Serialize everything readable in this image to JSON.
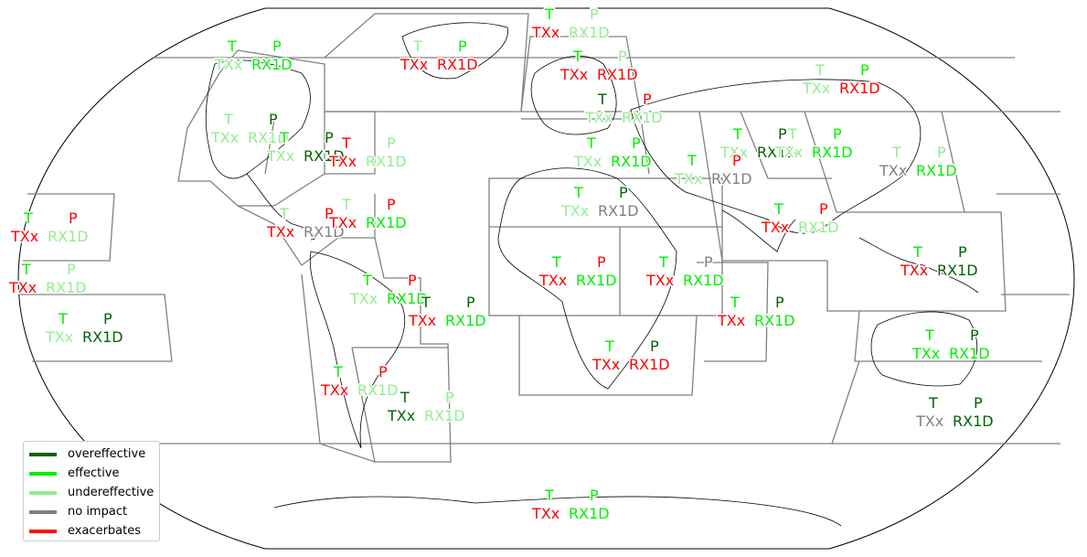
{
  "colors": {
    "overeffective": "#006400",
    "effective": "#00ee00",
    "undereffective": "#90ee90",
    "no_impact": "#808080",
    "exacerbates": "#ff0000"
  },
  "legend": [
    {
      "label": "overeffective",
      "color": "#006400"
    },
    {
      "label": "effective",
      "color": "#00ee00"
    },
    {
      "label": "undereffective",
      "color": "#90ee90"
    },
    {
      "label": "no impact",
      "color": "#808080"
    },
    {
      "label": "exacerbates",
      "color": "#ff0000"
    }
  ],
  "regions": [
    {
      "id": "alaska",
      "T": {
        "text": "T",
        "color": "#00ee00"
      },
      "P": {
        "text": "P",
        "color": "#00ee00"
      },
      "TXx": {
        "text": "TXx",
        "color": "#90ee90"
      },
      "RX1D": {
        "text": "RX1D",
        "color": "#00ee00"
      }
    },
    {
      "id": "greenland",
      "T": {
        "text": "T",
        "color": "#90ee90"
      },
      "P": {
        "text": "P",
        "color": "#00ee00"
      },
      "TXx": {
        "text": "TXx",
        "color": "#ff0000"
      },
      "RX1D": {
        "text": "RX1D",
        "color": "#ff0000"
      }
    },
    {
      "id": "arctic-europe",
      "T": {
        "text": "T",
        "color": "#00ee00"
      },
      "P": {
        "text": "P",
        "color": "#90ee90"
      },
      "TXx": {
        "text": "TXx",
        "color": "#ff0000"
      },
      "RX1D": {
        "text": "RX1D",
        "color": "#90ee90"
      }
    },
    {
      "id": "north-europe",
      "T": {
        "text": "T",
        "color": "#00ee00"
      },
      "P": {
        "text": "P",
        "color": "#90ee90"
      },
      "TXx": {
        "text": "TXx",
        "color": "#ff0000"
      },
      "RX1D": {
        "text": "RX1D",
        "color": "#ff0000"
      }
    },
    {
      "id": "russian-far-east",
      "T": {
        "text": "T",
        "color": "#90ee90"
      },
      "P": {
        "text": "P",
        "color": "#00ee00"
      },
      "TXx": {
        "text": "TXx",
        "color": "#90ee90"
      },
      "RX1D": {
        "text": "RX1D",
        "color": "#ff0000"
      }
    },
    {
      "id": "west-north-america",
      "T": {
        "text": "T",
        "color": "#90ee90"
      },
      "P": {
        "text": "P",
        "color": "#006400"
      },
      "TXx": {
        "text": "TXx",
        "color": "#90ee90"
      },
      "RX1D": {
        "text": "RX1D",
        "color": "#90ee90"
      }
    },
    {
      "id": "central-north-america",
      "T": {
        "text": "T",
        "color": "#00ee00"
      },
      "P": {
        "text": "P",
        "color": "#006400"
      },
      "TXx": {
        "text": "TXx",
        "color": "#90ee90"
      },
      "RX1D": {
        "text": "RX1D",
        "color": "#006400"
      }
    },
    {
      "id": "east-north-america",
      "T": {
        "text": "T",
        "color": "#ff0000"
      },
      "P": {
        "text": "P",
        "color": "#90ee90"
      },
      "TXx": {
        "text": "TXx",
        "color": "#ff0000"
      },
      "RX1D": {
        "text": "RX1D",
        "color": "#90ee90"
      }
    },
    {
      "id": "west-central-europe",
      "T": {
        "text": "T",
        "color": "#006400"
      },
      "P": {
        "text": "P",
        "color": "#ff0000"
      },
      "TXx": {
        "text": "TXx",
        "color": "#90ee90"
      },
      "RX1D": {
        "text": "RX1D",
        "color": "#90ee90"
      }
    },
    {
      "id": "mediterranean",
      "T": {
        "text": "T",
        "color": "#00ee00"
      },
      "P": {
        "text": "P",
        "color": "#00ee00"
      },
      "TXx": {
        "text": "TXx",
        "color": "#90ee90"
      },
      "RX1D": {
        "text": "RX1D",
        "color": "#00ee00"
      }
    },
    {
      "id": "west-siberia",
      "T": {
        "text": "T",
        "color": "#00ee00"
      },
      "P": {
        "text": "P",
        "color": "#006400"
      },
      "TXx": {
        "text": "TXx",
        "color": "#90ee90"
      },
      "RX1D": {
        "text": "RX1D",
        "color": "#006400"
      }
    },
    {
      "id": "east-siberia",
      "T": {
        "text": "T",
        "color": "#90ee90"
      },
      "P": {
        "text": "P",
        "color": "#00ee00"
      },
      "TXx": {
        "text": "TXx",
        "color": "#90ee90"
      },
      "RX1D": {
        "text": "RX1D",
        "color": "#00ee00"
      }
    },
    {
      "id": "east-asia",
      "T": {
        "text": "T",
        "color": "#90ee90"
      },
      "P": {
        "text": "P",
        "color": "#90ee90"
      },
      "TXx": {
        "text": "TXx",
        "color": "#808080"
      },
      "RX1D": {
        "text": "RX1D",
        "color": "#00ee00"
      }
    },
    {
      "id": "west-central-asia",
      "T": {
        "text": "T",
        "color": "#00ee00"
      },
      "P": {
        "text": "P",
        "color": "#ff0000"
      },
      "TXx": {
        "text": "TXx",
        "color": "#90ee90"
      },
      "RX1D": {
        "text": "RX1D",
        "color": "#808080"
      }
    },
    {
      "id": "sahara",
      "T": {
        "text": "T",
        "color": "#00ee00"
      },
      "P": {
        "text": "P",
        "color": "#006400"
      },
      "TXx": {
        "text": "TXx",
        "color": "#90ee90"
      },
      "RX1D": {
        "text": "RX1D",
        "color": "#808080"
      }
    },
    {
      "id": "south-asia",
      "T": {
        "text": "T",
        "color": "#00ee00"
      },
      "P": {
        "text": "P",
        "color": "#ff0000"
      },
      "TXx": {
        "text": "TXx",
        "color": "#ff0000"
      },
      "RX1D": {
        "text": "RX1D",
        "color": "#90ee90"
      }
    },
    {
      "id": "hawaii",
      "T": {
        "text": "T",
        "color": "#00ee00"
      },
      "P": {
        "text": "P",
        "color": "#ff0000"
      },
      "TXx": {
        "text": "TXx",
        "color": "#ff0000"
      },
      "RX1D": {
        "text": "RX1D",
        "color": "#90ee90"
      }
    },
    {
      "id": "central-america",
      "T": {
        "text": "T",
        "color": "#90ee90"
      },
      "P": {
        "text": "P",
        "color": "#ff0000"
      },
      "TXx": {
        "text": "TXx",
        "color": "#ff0000"
      },
      "RX1D": {
        "text": "RX1D",
        "color": "#808080"
      }
    },
    {
      "id": "caribbean",
      "T": {
        "text": "T",
        "color": "#90ee90"
      },
      "P": {
        "text": "P",
        "color": "#ff0000"
      },
      "TXx": {
        "text": "TXx",
        "color": "#ff0000"
      },
      "RX1D": {
        "text": "RX1D",
        "color": "#00ee00"
      }
    },
    {
      "id": "north-pacific",
      "T": {
        "text": "T",
        "color": "#00ee00"
      },
      "P": {
        "text": "P",
        "color": "#90ee90"
      },
      "TXx": {
        "text": "TXx",
        "color": "#ff0000"
      },
      "RX1D": {
        "text": "RX1D",
        "color": "#90ee90"
      }
    },
    {
      "id": "pacific-equatorial",
      "T": {
        "text": "T",
        "color": "#00ee00"
      },
      "P": {
        "text": "P",
        "color": "#006400"
      },
      "TXx": {
        "text": "TXx",
        "color": "#90ee90"
      },
      "RX1D": {
        "text": "RX1D",
        "color": "#006400"
      }
    },
    {
      "id": "north-west-south-america",
      "T": {
        "text": "T",
        "color": "#00ee00"
      },
      "P": {
        "text": "P",
        "color": "#ff0000"
      },
      "TXx": {
        "text": "TXx",
        "color": "#90ee90"
      },
      "RX1D": {
        "text": "RX1D",
        "color": "#00ee00"
      }
    },
    {
      "id": "north-east-south-america",
      "T": {
        "text": "T",
        "color": "#006400"
      },
      "P": {
        "text": "P",
        "color": "#006400"
      },
      "TXx": {
        "text": "TXx",
        "color": "#ff0000"
      },
      "RX1D": {
        "text": "RX1D",
        "color": "#00ee00"
      }
    },
    {
      "id": "west-africa",
      "T": {
        "text": "T",
        "color": "#00ee00"
      },
      "P": {
        "text": "P",
        "color": "#ff0000"
      },
      "TXx": {
        "text": "TXx",
        "color": "#ff0000"
      },
      "RX1D": {
        "text": "RX1D",
        "color": "#00ee00"
      }
    },
    {
      "id": "east-africa",
      "T": {
        "text": "T",
        "color": "#00ee00"
      },
      "P": {
        "text": "P",
        "color": "#808080"
      },
      "TXx": {
        "text": "TXx",
        "color": "#ff0000"
      },
      "RX1D": {
        "text": "RX1D",
        "color": "#00ee00"
      }
    },
    {
      "id": "arabian-sea",
      "T": {
        "text": "T",
        "color": "#00ee00"
      },
      "P": {
        "text": "P",
        "color": "#006400"
      },
      "TXx": {
        "text": "TXx",
        "color": "#ff0000"
      },
      "RX1D": {
        "text": "RX1D",
        "color": "#00ee00"
      }
    },
    {
      "id": "south-east-asia",
      "T": {
        "text": "T",
        "color": "#00ee00"
      },
      "P": {
        "text": "P",
        "color": "#006400"
      },
      "TXx": {
        "text": "TXx",
        "color": "#ff0000"
      },
      "RX1D": {
        "text": "RX1D",
        "color": "#006400"
      }
    },
    {
      "id": "southern-africa",
      "T": {
        "text": "T",
        "color": "#00ee00"
      },
      "P": {
        "text": "P",
        "color": "#006400"
      },
      "TXx": {
        "text": "TXx",
        "color": "#ff0000"
      },
      "RX1D": {
        "text": "RX1D",
        "color": "#ff0000"
      }
    },
    {
      "id": "south-west-south-america",
      "T": {
        "text": "T",
        "color": "#00ee00"
      },
      "P": {
        "text": "P",
        "color": "#ff0000"
      },
      "TXx": {
        "text": "TXx",
        "color": "#ff0000"
      },
      "RX1D": {
        "text": "RX1D",
        "color": "#90ee90"
      }
    },
    {
      "id": "south-east-south-america",
      "T": {
        "text": "T",
        "color": "#006400"
      },
      "P": {
        "text": "P",
        "color": "#90ee90"
      },
      "TXx": {
        "text": "TXx",
        "color": "#006400"
      },
      "RX1D": {
        "text": "RX1D",
        "color": "#90ee90"
      }
    },
    {
      "id": "north-australia",
      "T": {
        "text": "T",
        "color": "#00ee00"
      },
      "P": {
        "text": "P",
        "color": "#006400"
      },
      "TXx": {
        "text": "TXx",
        "color": "#00ee00"
      },
      "RX1D": {
        "text": "RX1D",
        "color": "#00ee00"
      }
    },
    {
      "id": "south-australia",
      "T": {
        "text": "T",
        "color": "#006400"
      },
      "P": {
        "text": "P",
        "color": "#006400"
      },
      "TXx": {
        "text": "TXx",
        "color": "#808080"
      },
      "RX1D": {
        "text": "RX1D",
        "color": "#006400"
      }
    },
    {
      "id": "antarctica",
      "T": {
        "text": "T",
        "color": "#00ee00"
      },
      "P": {
        "text": "P",
        "color": "#00ee00"
      },
      "TXx": {
        "text": "TXx",
        "color": "#ff0000"
      },
      "RX1D": {
        "text": "RX1D",
        "color": "#00ee00"
      }
    }
  ]
}
